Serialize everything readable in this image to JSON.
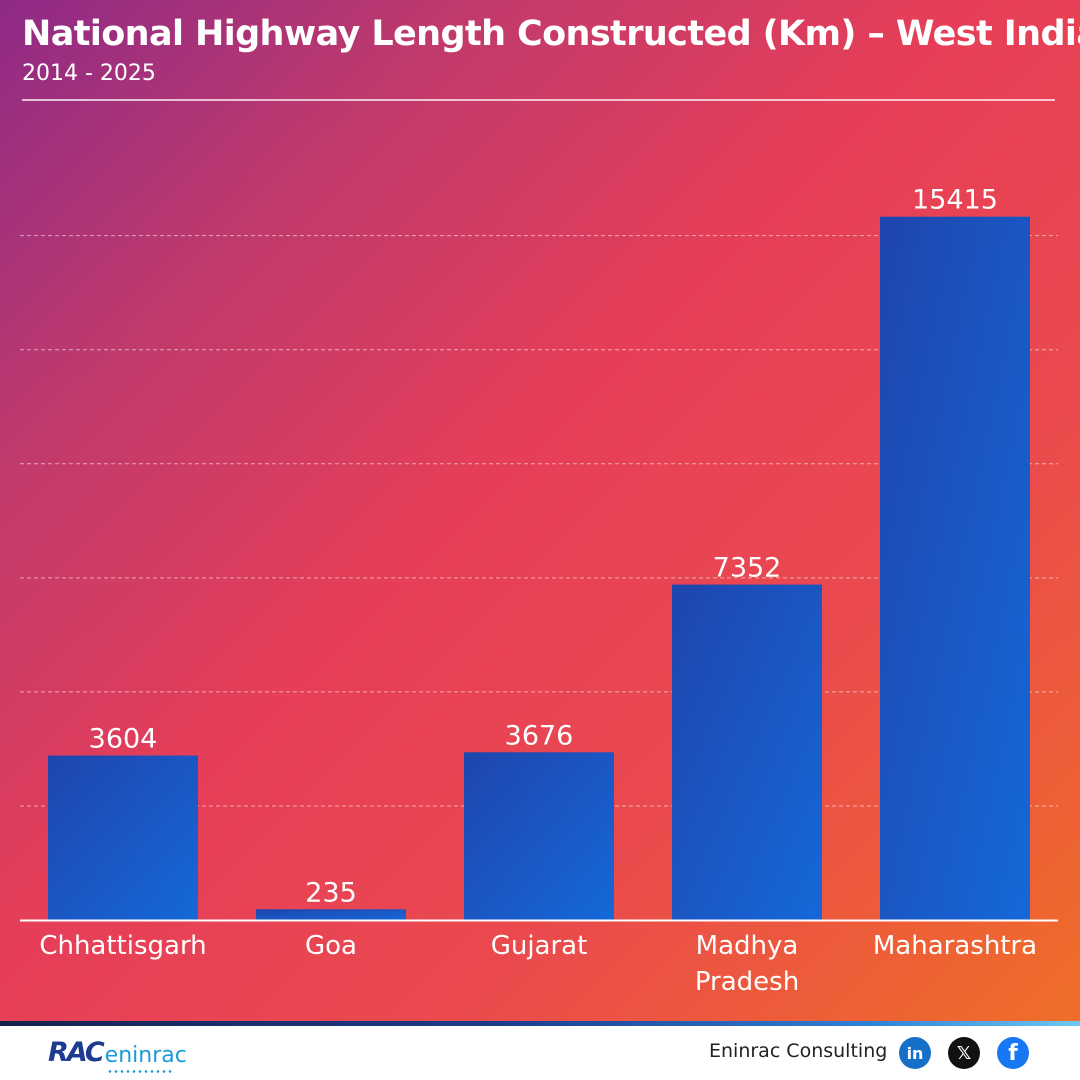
{
  "header": {
    "title": "National Highway Length Constructed (Km) – West India",
    "subtitle": "2014 - 2025"
  },
  "colors": {
    "bar_top": "#1f45ad",
    "bar_bottom": "#1568d8",
    "baseline": "#ffffff",
    "grid": "#ffffff"
  },
  "chart_data": {
    "type": "bar",
    "title": "National Highway Length Constructed (Km) – West India",
    "subtitle": "2014 - 2025",
    "categories": [
      "Chhattisgarh",
      "Goa",
      "Gujarat",
      "Madhya Pradesh",
      "Maharashtra"
    ],
    "category_lines": [
      [
        "Chhattisgarh"
      ],
      [
        "Goa"
      ],
      [
        "Gujarat"
      ],
      [
        "Madhya",
        "Pradesh"
      ],
      [
        "Maharashtra"
      ]
    ],
    "values": [
      3604,
      235,
      3676,
      7352,
      15415
    ],
    "data_labels": [
      "3604",
      "235",
      "3676",
      "7352",
      "15415"
    ],
    "ylim": [
      0,
      16000
    ],
    "grid": true,
    "grid_style": "dashed",
    "legend": "none",
    "xlabel": "",
    "ylabel": ""
  },
  "footer": {
    "logo_mark": "RAC",
    "logo_word": "eninrac",
    "brand": "Eninrac Consulting",
    "social": [
      {
        "name": "linkedin-icon",
        "glyph": "in"
      },
      {
        "name": "x-icon",
        "glyph": "𝕏"
      },
      {
        "name": "facebook-icon",
        "glyph": "f"
      }
    ]
  }
}
